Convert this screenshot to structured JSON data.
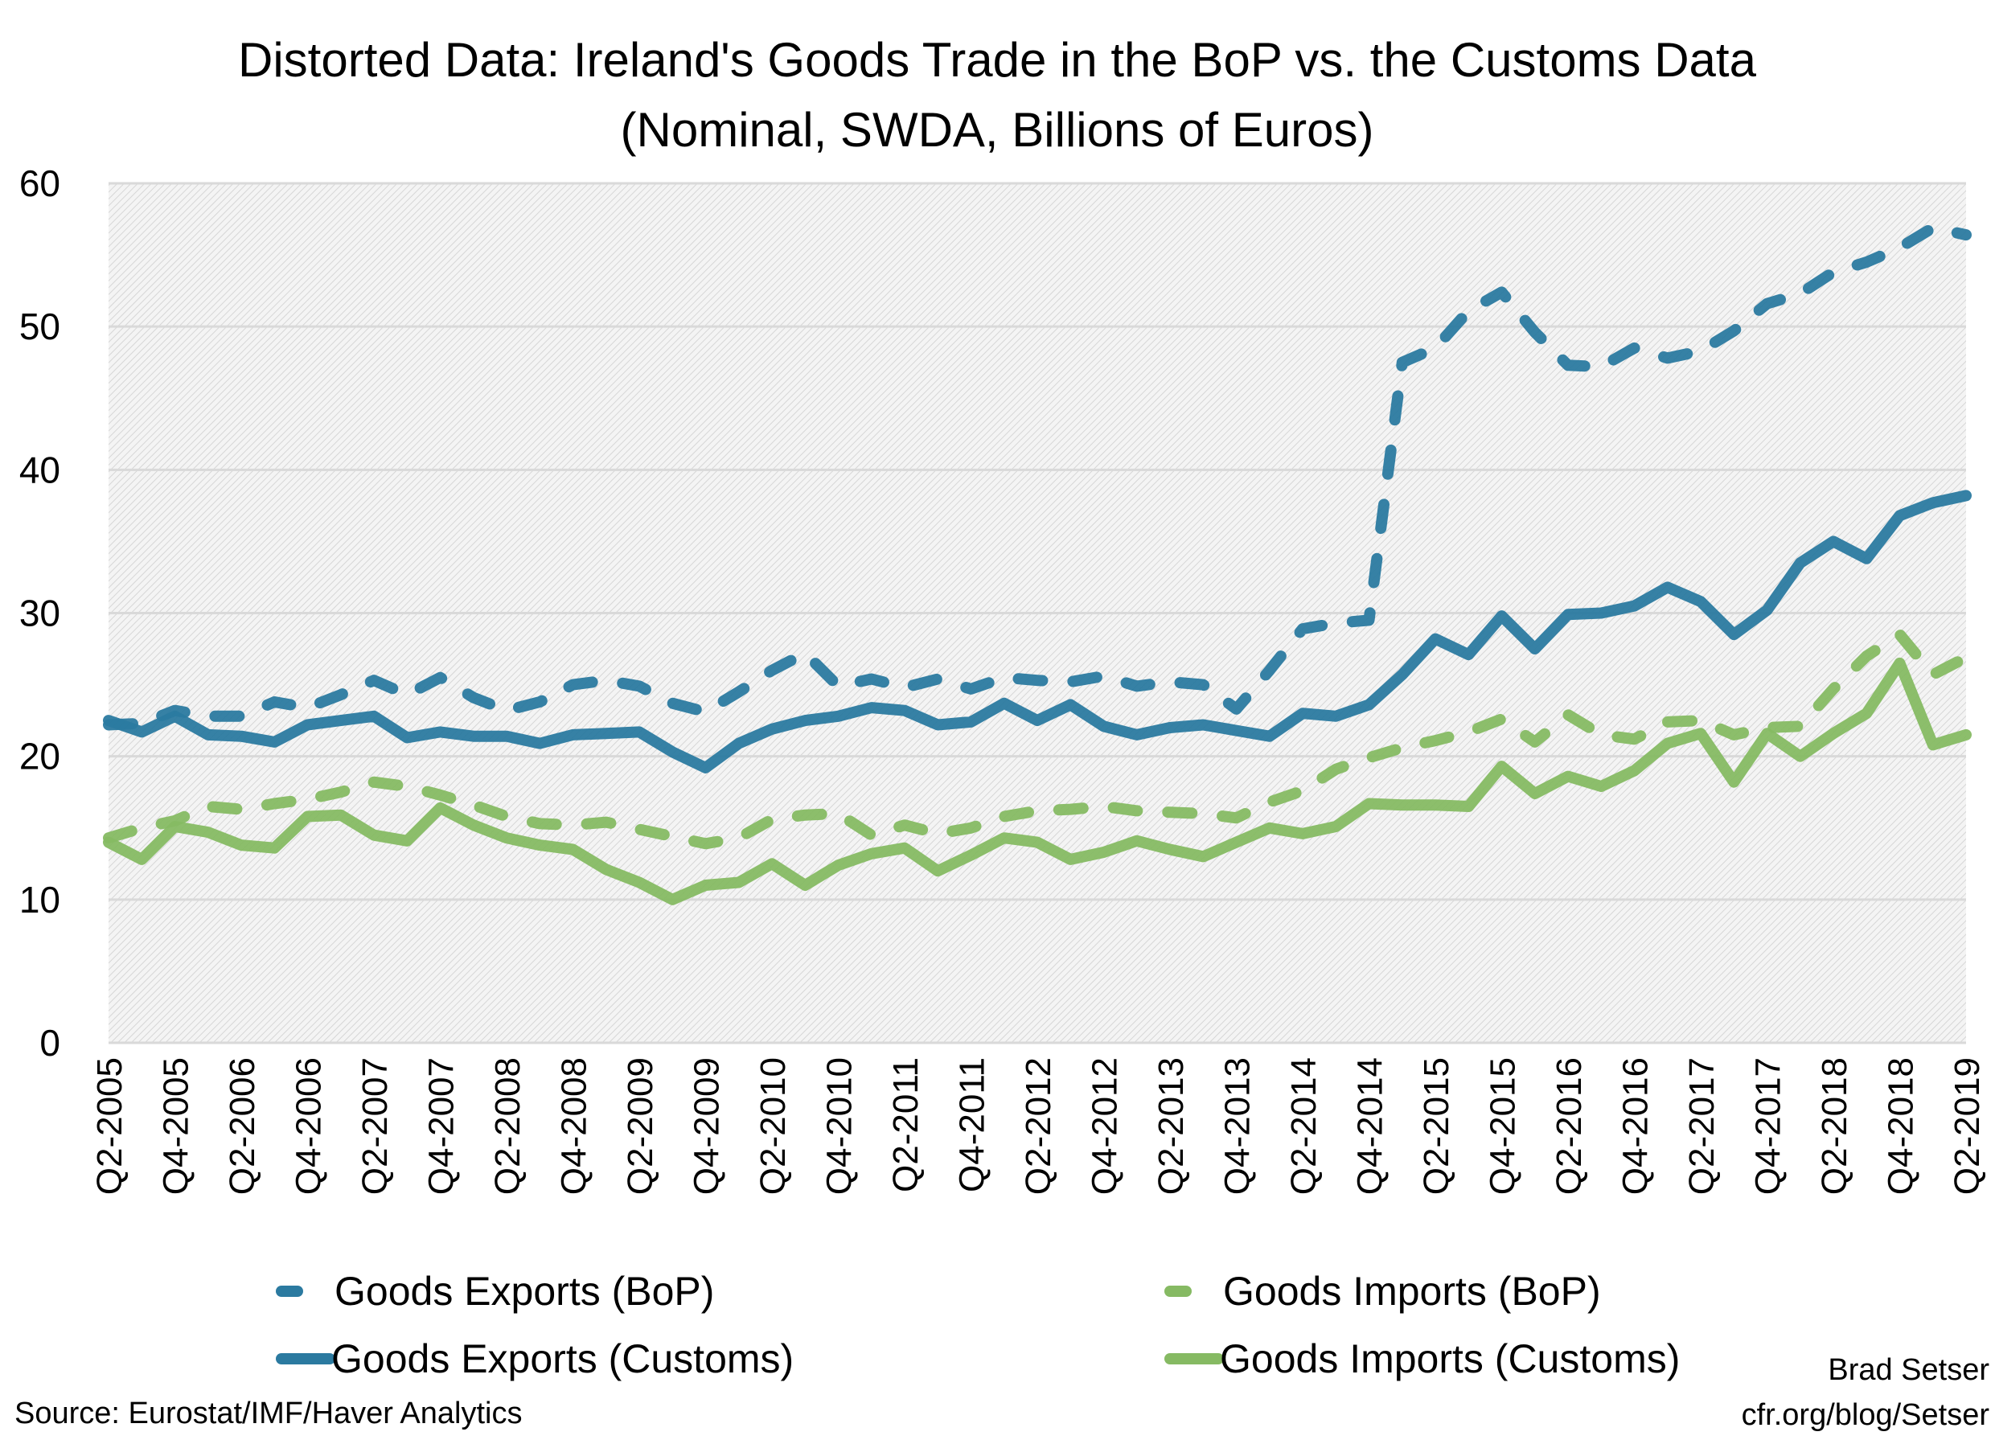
{
  "chart_data": {
    "type": "line",
    "title": "Distorted Data: Ireland's Goods Trade in the BoP vs. the Customs Data",
    "subtitle": "(Nominal, SWDA, Billions of Euros)",
    "ylim": [
      0,
      60
    ],
    "yticks": [
      0,
      10,
      20,
      30,
      40,
      50,
      60
    ],
    "grid": true,
    "legend_position": "bottom",
    "x": [
      "Q2-2005",
      "Q3-2005",
      "Q4-2005",
      "Q1-2006",
      "Q2-2006",
      "Q3-2006",
      "Q4-2006",
      "Q1-2007",
      "Q2-2007",
      "Q3-2007",
      "Q4-2007",
      "Q1-2008",
      "Q2-2008",
      "Q3-2008",
      "Q4-2008",
      "Q1-2009",
      "Q2-2009",
      "Q3-2009",
      "Q4-2009",
      "Q1-2010",
      "Q2-2010",
      "Q3-2010",
      "Q4-2010",
      "Q1-2011",
      "Q2-2011",
      "Q3-2011",
      "Q4-2011",
      "Q1-2012",
      "Q2-2012",
      "Q3-2012",
      "Q4-2012",
      "Q1-2013",
      "Q2-2013",
      "Q3-2013",
      "Q4-2013",
      "Q1-2014",
      "Q2-2014",
      "Q3-2014",
      "Q4-2014",
      "Q1-2015",
      "Q2-2015",
      "Q3-2015",
      "Q4-2015",
      "Q1-2016",
      "Q2-2016",
      "Q3-2016",
      "Q4-2016",
      "Q1-2017",
      "Q2-2017",
      "Q3-2017",
      "Q4-2017",
      "Q1-2018",
      "Q2-2018",
      "Q3-2018",
      "Q4-2018",
      "Q1-2019",
      "Q2-2019"
    ],
    "xtick_labels": [
      "Q2-2005",
      "Q4-2005",
      "Q2-2006",
      "Q4-2006",
      "Q2-2007",
      "Q4-2007",
      "Q2-2008",
      "Q4-2008",
      "Q2-2009",
      "Q4-2009",
      "Q2-2010",
      "Q4-2010",
      "Q2-2011",
      "Q4-2011",
      "Q2-2012",
      "Q4-2012",
      "Q2-2013",
      "Q4-2013",
      "Q2-2014",
      "Q4-2014",
      "Q2-2015",
      "Q4-2015",
      "Q2-2016",
      "Q4-2016",
      "Q2-2017",
      "Q4-2017",
      "Q2-2018",
      "Q4-2018",
      "Q2-2019"
    ],
    "series": [
      {
        "name": "Goods Exports (BoP)",
        "color": "#2b7aa0",
        "dash": true,
        "values": [
          22.2,
          22.3,
          23.2,
          22.8,
          22.8,
          23.8,
          23.4,
          24.3,
          25.3,
          24.3,
          25.5,
          24.1,
          23.2,
          23.8,
          25.0,
          25.3,
          24.9,
          23.7,
          23.1,
          24.5,
          26.0,
          27.2,
          24.9,
          25.4,
          24.8,
          25.4,
          24.7,
          25.5,
          25.3,
          25.2,
          25.6,
          24.9,
          25.2,
          25.0,
          23.3,
          26.0,
          28.9,
          29.3,
          29.5,
          47.5,
          48.5,
          51.1,
          52.4,
          49.6,
          47.3,
          47.2,
          48.5,
          47.8,
          48.3,
          49.7,
          51.6,
          52.3,
          53.8,
          54.5,
          55.5,
          56.9,
          56.4
        ]
      },
      {
        "name": "Goods Imports (BoP)",
        "color": "#86ba63",
        "dash": true,
        "values": [
          14.3,
          15.0,
          15.5,
          16.5,
          16.3,
          16.7,
          17.0,
          17.5,
          18.2,
          17.9,
          17.3,
          16.6,
          15.8,
          15.3,
          15.2,
          15.4,
          14.9,
          14.4,
          13.9,
          14.3,
          15.6,
          15.9,
          16.0,
          14.5,
          15.2,
          14.6,
          15.0,
          15.8,
          16.2,
          16.3,
          16.5,
          16.2,
          16.1,
          16.0,
          15.7,
          16.8,
          17.6,
          19.1,
          19.9,
          20.6,
          21.1,
          21.7,
          22.6,
          21.0,
          22.9,
          21.5,
          21.2,
          22.4,
          22.5,
          21.5,
          22.0,
          22.1,
          24.7,
          27.0,
          28.5,
          25.7,
          26.9
        ]
      },
      {
        "name": "Goods Exports (Customs)",
        "color": "#2b7aa0",
        "dash": false,
        "values": [
          22.5,
          21.7,
          22.8,
          21.5,
          21.4,
          21.0,
          22.2,
          22.5,
          22.8,
          21.3,
          21.7,
          21.4,
          21.4,
          20.9,
          21.5,
          21.6,
          21.7,
          20.3,
          19.2,
          20.9,
          21.9,
          22.5,
          22.8,
          23.4,
          23.2,
          22.2,
          22.4,
          23.7,
          22.5,
          23.6,
          22.1,
          21.5,
          22.0,
          22.2,
          21.8,
          21.4,
          23.0,
          22.8,
          23.6,
          25.7,
          28.2,
          27.1,
          29.8,
          27.5,
          29.9,
          30.0,
          30.5,
          31.8,
          30.8,
          28.5,
          30.2,
          33.5,
          35.0,
          33.8,
          36.8,
          37.7,
          38.2
        ]
      },
      {
        "name": "Goods Imports (Customs)",
        "color": "#86ba63",
        "dash": false,
        "values": [
          14.0,
          12.8,
          15.1,
          14.7,
          13.8,
          13.6,
          15.8,
          15.9,
          14.5,
          14.1,
          16.4,
          15.2,
          14.3,
          13.8,
          13.5,
          12.1,
          11.2,
          10.0,
          11.0,
          11.2,
          12.5,
          11.0,
          12.4,
          13.2,
          13.6,
          12.0,
          13.1,
          14.3,
          14.0,
          12.8,
          13.3,
          14.1,
          13.5,
          13.0,
          14.0,
          15.0,
          14.6,
          15.1,
          16.7,
          16.6,
          16.6,
          16.5,
          19.3,
          17.4,
          18.6,
          17.9,
          19.0,
          20.9,
          21.6,
          18.2,
          21.6,
          20.0,
          21.6,
          23.0,
          26.5,
          20.8,
          21.5
        ]
      }
    ]
  },
  "footer": {
    "source": "Source: Eurostat/IMF/Haver Analytics",
    "author": "Brad Setser",
    "url": "cfr.org/blog/Setser"
  }
}
